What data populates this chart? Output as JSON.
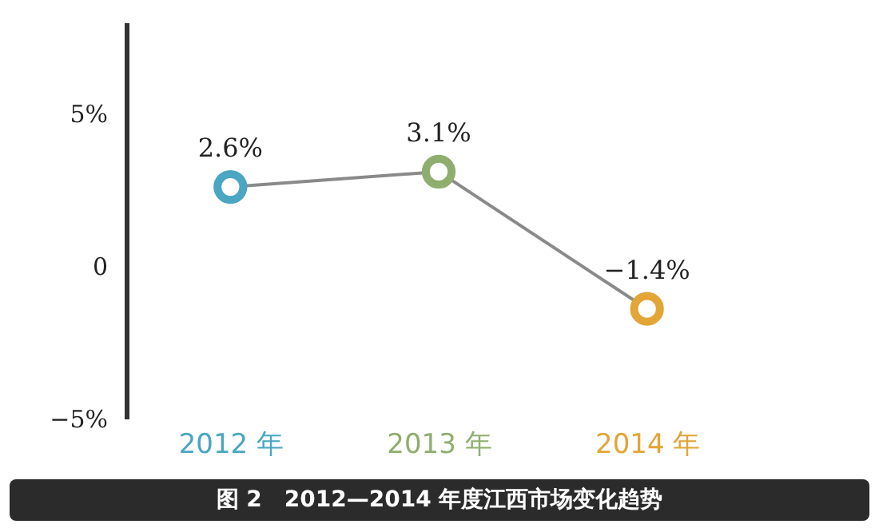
{
  "chart_data": {
    "type": "line",
    "title": "图 2　2012—2014 年度江西市场变化趋势",
    "categories": [
      "2012 年",
      "2013 年",
      "2014 年"
    ],
    "series": [
      {
        "color": "#8a8a8a",
        "values": [
          2.6,
          3.1,
          -1.4
        ]
      }
    ],
    "colors": [
      "#4aa6c2",
      "#8fae6e",
      "#e2a536"
    ],
    "value_labels": [
      "2.6%",
      "3.1%",
      "−1.4%"
    ],
    "ylim": [
      -5,
      8
    ],
    "yticks": [
      {
        "value": 5,
        "label": "5%"
      },
      0,
      {
        "value": -5,
        "label": "−5%"
      }
    ],
    "marker": "circle",
    "line_style": "solid"
  }
}
